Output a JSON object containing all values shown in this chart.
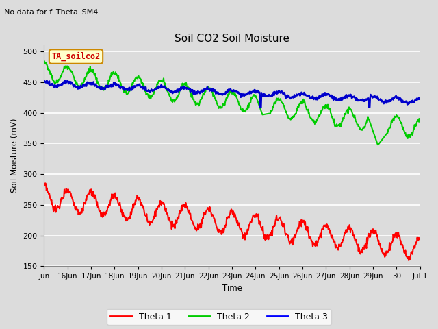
{
  "title": "Soil CO2 Soil Moisture",
  "subtitle": "No data for f_Theta_SM4",
  "ylabel": "Soil Moisture (mV)",
  "xlabel": "Time",
  "ylim": [
    150,
    510
  ],
  "yticks": [
    150,
    200,
    250,
    300,
    350,
    400,
    450,
    500
  ],
  "legend_box_label": "TA_soilco2",
  "legend_entries": [
    "Theta 1",
    "Theta 2",
    "Theta 3"
  ],
  "legend_colors": [
    "#ff0000",
    "#00cc00",
    "#0000ff"
  ],
  "bg_color": "#dcdcdc",
  "xtick_labels": [
    "Jun",
    "16Jun",
    "17Jun",
    "18Jun",
    "19Jun",
    "20Jun",
    "21Jun",
    "22Jun",
    "23Jun",
    "24Jun",
    "25Jun",
    "26Jun",
    "27Jun",
    "28Jun",
    "29Jun",
    "30",
    "Jul 1"
  ],
  "n_days": 16
}
